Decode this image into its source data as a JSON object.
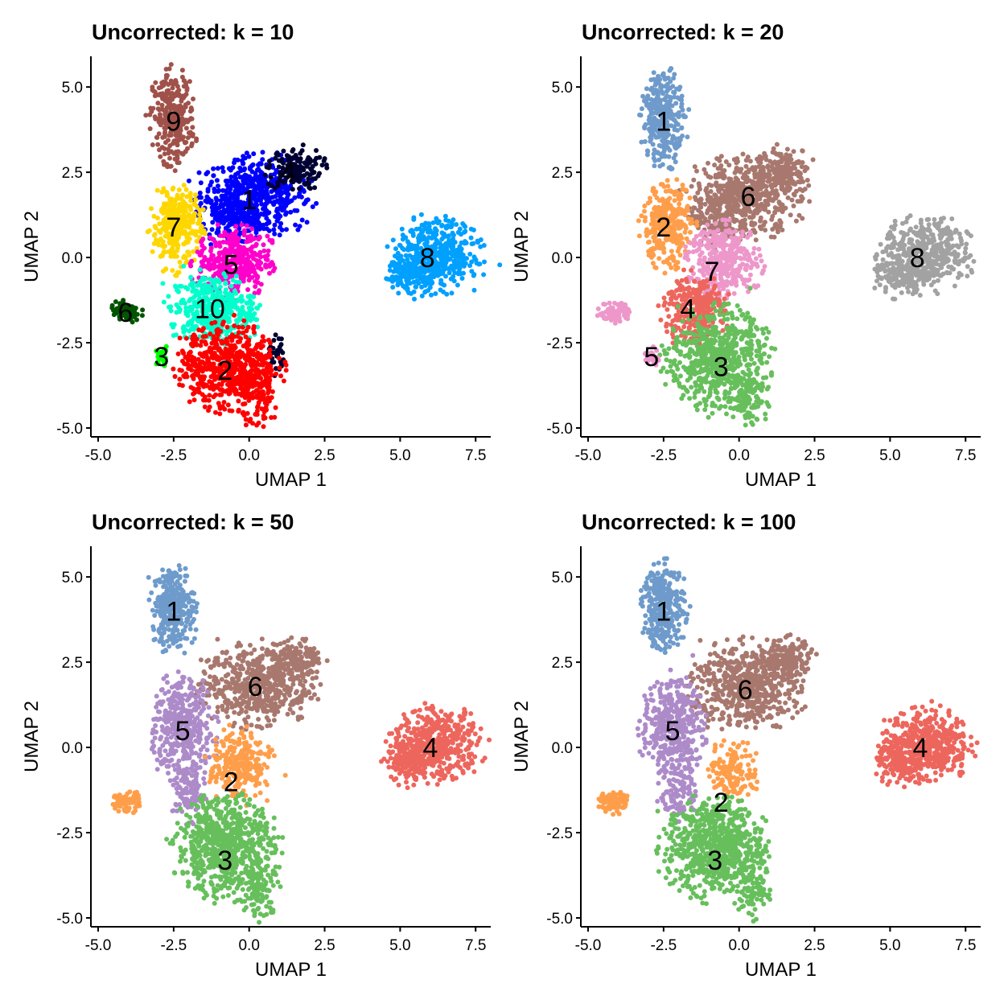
{
  "chart_data": [
    {
      "type": "scatter",
      "title": "Uncorrected: k = 10",
      "xlabel": "UMAP 1",
      "ylabel": "UMAP 2",
      "xlim": [
        -5.24,
        8.0
      ],
      "ylim": [
        -5.26,
        5.9
      ],
      "xticks": [
        "-5.0",
        "-2.5",
        "0.0",
        "2.5",
        "5.0",
        "7.5"
      ],
      "yticks": [
        "-5.0",
        "-2.5",
        "0.0",
        "2.5",
        "5.0"
      ],
      "clusters": [
        {
          "label": "1",
          "color": "#0000FF",
          "label_at": [
            0,
            1.7
          ],
          "blobs": [
            [
              0.2,
              1.8,
              0.9,
              0.55,
              500
            ],
            [
              -0.6,
              1.2,
              0.5,
              0.4,
              150
            ]
          ]
        },
        {
          "label": "4",
          "color": "#000033",
          "label_at": [
            1.3,
            2.5
          ],
          "blobs": [
            [
              1.5,
              2.6,
              0.45,
              0.3,
              150
            ],
            [
              0.9,
              -2.8,
              0.12,
              0.3,
              30
            ]
          ]
        },
        {
          "label": "9",
          "color": "#A0524A",
          "label_at": [
            -2.5,
            4.0
          ],
          "blobs": [
            [
              -2.5,
              4.1,
              0.35,
              0.65,
              300
            ]
          ]
        },
        {
          "label": "7",
          "color": "#FFD700",
          "label_at": [
            -2.5,
            0.9
          ],
          "blobs": [
            [
              -2.4,
              0.9,
              0.4,
              0.6,
              300
            ]
          ]
        },
        {
          "label": "5",
          "color": "#FF00CC",
          "label_at": [
            -0.6,
            -0.2
          ],
          "blobs": [
            [
              -0.5,
              -0.1,
              0.6,
              0.5,
              350
            ]
          ]
        },
        {
          "label": "10",
          "color": "#00FFCC",
          "label_at": [
            -1.3,
            -1.5
          ],
          "blobs": [
            [
              -1.2,
              -1.5,
              0.7,
              0.5,
              400
            ]
          ]
        },
        {
          "label": "2",
          "color": "#FF0000",
          "label_at": [
            -0.8,
            -3.3
          ],
          "blobs": [
            [
              -0.7,
              -3.2,
              0.8,
              0.6,
              600
            ],
            [
              0.4,
              -4.2,
              0.3,
              0.4,
              80
            ]
          ]
        },
        {
          "label": "6",
          "color": "#005500",
          "label_at": [
            -4.1,
            -1.6
          ],
          "blobs": [
            [
              -4.1,
              -1.6,
              0.25,
              0.15,
              80
            ]
          ]
        },
        {
          "label": "3",
          "color": "#00FF00",
          "label_at": [
            -2.9,
            -2.9
          ],
          "blobs": [
            [
              -2.9,
              -2.9,
              0.12,
              0.15,
              25
            ]
          ]
        },
        {
          "label": "8",
          "color": "#00A0FF",
          "label_at": [
            5.9,
            0.0
          ],
          "blobs": [
            [
              6.2,
              0.1,
              0.7,
              0.5,
              450
            ],
            [
              5.3,
              -0.5,
              0.4,
              0.3,
              120
            ]
          ]
        }
      ]
    },
    {
      "type": "scatter",
      "title": "Uncorrected: k = 20",
      "xlabel": "UMAP 1",
      "ylabel": "UMAP 2",
      "xlim": [
        -5.24,
        8.0
      ],
      "ylim": [
        -5.26,
        5.9
      ],
      "xticks": [
        "-5.0",
        "-2.5",
        "0.0",
        "2.5",
        "5.0",
        "7.5"
      ],
      "yticks": [
        "-5.0",
        "-2.5",
        "0.0",
        "2.5",
        "5.0"
      ],
      "clusters": [
        {
          "label": "1",
          "color": "#6E9BCB",
          "label_at": [
            -2.5,
            4.0
          ],
          "blobs": [
            [
              -2.5,
              4.1,
              0.35,
              0.65,
              300
            ]
          ]
        },
        {
          "label": "6",
          "color": "#A8786E",
          "label_at": [
            0.3,
            1.8
          ],
          "blobs": [
            [
              0.2,
              1.8,
              0.9,
              0.55,
              500
            ],
            [
              1.5,
              2.6,
              0.45,
              0.3,
              150
            ],
            [
              -0.6,
              1.2,
              0.5,
              0.4,
              150
            ]
          ]
        },
        {
          "label": "2",
          "color": "#FF9E4A",
          "label_at": [
            -2.5,
            0.9
          ],
          "blobs": [
            [
              -2.4,
              0.9,
              0.4,
              0.6,
              300
            ]
          ]
        },
        {
          "label": "7",
          "color": "#ED97CA",
          "label_at": [
            -0.9,
            -0.4
          ],
          "blobs": [
            [
              -0.5,
              -0.1,
              0.6,
              0.5,
              350
            ]
          ]
        },
        {
          "label": "4",
          "color": "#ED665D",
          "label_at": [
            -1.7,
            -1.5
          ],
          "blobs": [
            [
              -1.5,
              -1.5,
              0.5,
              0.5,
              300
            ]
          ]
        },
        {
          "label": "3",
          "color": "#67BF5C",
          "label_at": [
            -0.6,
            -3.2
          ],
          "blobs": [
            [
              -0.7,
              -3.0,
              0.8,
              0.7,
              650
            ],
            [
              0.4,
              -4.2,
              0.3,
              0.4,
              80
            ]
          ]
        },
        {
          "label": "5",
          "color": "#ED97CA",
          "label_at": [
            -2.9,
            -2.9
          ],
          "blobs": [
            [
              -4.1,
              -1.6,
              0.25,
              0.15,
              80
            ],
            [
              -2.9,
              -2.9,
              0.12,
              0.15,
              25
            ]
          ]
        },
        {
          "label": "8",
          "color": "#A2A2A2",
          "label_at": [
            5.9,
            0.0
          ],
          "blobs": [
            [
              6.2,
              0.1,
              0.7,
              0.5,
              450
            ],
            [
              5.3,
              -0.5,
              0.4,
              0.3,
              120
            ]
          ]
        }
      ]
    },
    {
      "type": "scatter",
      "title": "Uncorrected: k = 50",
      "xlabel": "UMAP 1",
      "ylabel": "UMAP 2",
      "xlim": [
        -5.24,
        8.0
      ],
      "ylim": [
        -5.26,
        5.9
      ],
      "xticks": [
        "-5.0",
        "-2.5",
        "0.0",
        "2.5",
        "5.0",
        "7.5"
      ],
      "yticks": [
        "-5.0",
        "-2.5",
        "0.0",
        "2.5",
        "5.0"
      ],
      "clusters": [
        {
          "label": "1",
          "color": "#6E9BCB",
          "label_at": [
            -2.5,
            4.0
          ],
          "blobs": [
            [
              -2.5,
              4.1,
              0.35,
              0.6,
              300
            ]
          ]
        },
        {
          "label": "6",
          "color": "#A8786E",
          "label_at": [
            0.2,
            1.8
          ],
          "blobs": [
            [
              0.2,
              1.8,
              0.9,
              0.55,
              500
            ],
            [
              1.5,
              2.6,
              0.45,
              0.3,
              150
            ]
          ]
        },
        {
          "label": "5",
          "color": "#AD8BC9",
          "label_at": [
            -2.2,
            0.5
          ],
          "blobs": [
            [
              -2.2,
              0.6,
              0.5,
              0.7,
              400
            ],
            [
              -2.0,
              -1.3,
              0.3,
              0.4,
              100
            ]
          ]
        },
        {
          "label": "2",
          "color": "#FF9E4A",
          "label_at": [
            -0.6,
            -1.0
          ],
          "blobs": [
            [
              -0.3,
              -0.5,
              0.5,
              0.5,
              250
            ],
            [
              -4.1,
              -1.6,
              0.25,
              0.15,
              80
            ]
          ]
        },
        {
          "label": "3",
          "color": "#67BF5C",
          "label_at": [
            -0.8,
            -3.3
          ],
          "blobs": [
            [
              -0.8,
              -2.9,
              0.8,
              0.7,
              700
            ],
            [
              0.4,
              -4.2,
              0.3,
              0.4,
              80
            ]
          ]
        },
        {
          "label": "4",
          "color": "#ED665D",
          "label_at": [
            6.0,
            0.0
          ],
          "blobs": [
            [
              6.2,
              0.1,
              0.7,
              0.5,
              450
            ],
            [
              5.3,
              -0.5,
              0.4,
              0.3,
              120
            ]
          ]
        }
      ]
    },
    {
      "type": "scatter",
      "title": "Uncorrected: k = 100",
      "xlabel": "UMAP 1",
      "ylabel": "UMAP 2",
      "xlim": [
        -5.24,
        8.0
      ],
      "ylim": [
        -5.26,
        5.9
      ],
      "xticks": [
        "-5.0",
        "-2.5",
        "0.0",
        "2.5",
        "5.0",
        "7.5"
      ],
      "yticks": [
        "-5.0",
        "-2.5",
        "0.0",
        "2.5",
        "5.0"
      ],
      "clusters": [
        {
          "label": "1",
          "color": "#6E9BCB",
          "label_at": [
            -2.5,
            4.0
          ],
          "blobs": [
            [
              -2.5,
              4.1,
              0.35,
              0.6,
              300
            ]
          ]
        },
        {
          "label": "6",
          "color": "#A8786E",
          "label_at": [
            0.2,
            1.7
          ],
          "blobs": [
            [
              0.2,
              1.8,
              0.9,
              0.6,
              550
            ],
            [
              1.5,
              2.6,
              0.45,
              0.3,
              150
            ]
          ]
        },
        {
          "label": "5",
          "color": "#AD8BC9",
          "label_at": [
            -2.2,
            0.5
          ],
          "blobs": [
            [
              -2.2,
              0.6,
              0.5,
              0.7,
              400
            ],
            [
              -2.0,
              -1.3,
              0.3,
              0.4,
              100
            ]
          ]
        },
        {
          "label": "2",
          "color": "#FF9E4A",
          "label_at": [
            -0.6,
            -1.6
          ],
          "blobs": [
            [
              -0.2,
              -0.7,
              0.4,
              0.4,
              150
            ],
            [
              -4.1,
              -1.6,
              0.25,
              0.15,
              80
            ]
          ]
        },
        {
          "label": "3",
          "color": "#67BF5C",
          "label_at": [
            -0.8,
            -3.3
          ],
          "blobs": [
            [
              -0.8,
              -2.9,
              0.8,
              0.7,
              700
            ],
            [
              0.4,
              -4.2,
              0.3,
              0.4,
              80
            ]
          ]
        },
        {
          "label": "4",
          "color": "#ED665D",
          "label_at": [
            6.0,
            0.0
          ],
          "blobs": [
            [
              6.2,
              0.1,
              0.7,
              0.5,
              450
            ],
            [
              5.3,
              -0.5,
              0.4,
              0.3,
              120
            ]
          ]
        }
      ]
    }
  ]
}
